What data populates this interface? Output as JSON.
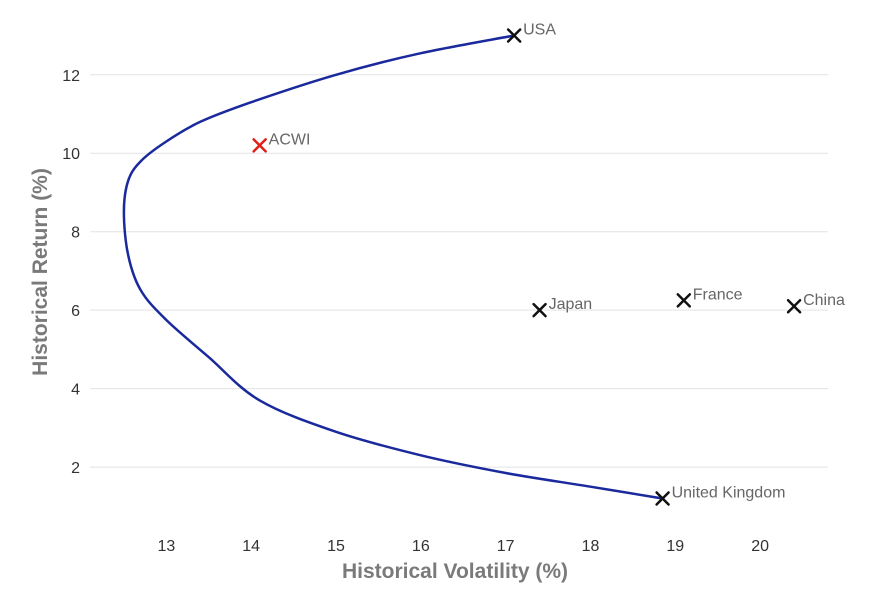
{
  "chart_data": {
    "type": "scatter",
    "xlabel": "Historical Volatility (%)",
    "ylabel": "Historical Return (%)",
    "xlim": [
      12.1,
      20.8
    ],
    "ylim": [
      0.6,
      13.6
    ],
    "xticks": [
      13,
      14,
      15,
      16,
      17,
      18,
      19,
      20
    ],
    "yticks": [
      2,
      4,
      6,
      8,
      10,
      12
    ],
    "grid": "horizontal",
    "points": [
      {
        "label": "USA",
        "x": 17.1,
        "y": 13.0,
        "color": "#111111"
      },
      {
        "label": "ACWI",
        "x": 14.1,
        "y": 10.2,
        "color": "#e0201b"
      },
      {
        "label": "Japan",
        "x": 17.4,
        "y": 6.0,
        "color": "#111111"
      },
      {
        "label": "France",
        "x": 19.1,
        "y": 6.25,
        "color": "#111111"
      },
      {
        "label": "China",
        "x": 20.4,
        "y": 6.1,
        "color": "#111111"
      },
      {
        "label": "United Kingdom",
        "x": 18.85,
        "y": 1.2,
        "color": "#111111"
      }
    ],
    "frontier": {
      "color": "#1a2a9c",
      "x": [
        17.1,
        16.0,
        15.0,
        14.0,
        13.4,
        13.0,
        12.7,
        12.55,
        12.5,
        12.55,
        12.7,
        13.0,
        13.5,
        14.1,
        15.0,
        16.0,
        17.0,
        18.0,
        18.85
      ],
      "y": [
        13.0,
        12.55,
        12.0,
        11.3,
        10.8,
        10.3,
        9.8,
        9.3,
        8.5,
        7.4,
        6.5,
        5.75,
        4.8,
        3.7,
        2.9,
        2.3,
        1.85,
        1.5,
        1.2
      ]
    }
  }
}
